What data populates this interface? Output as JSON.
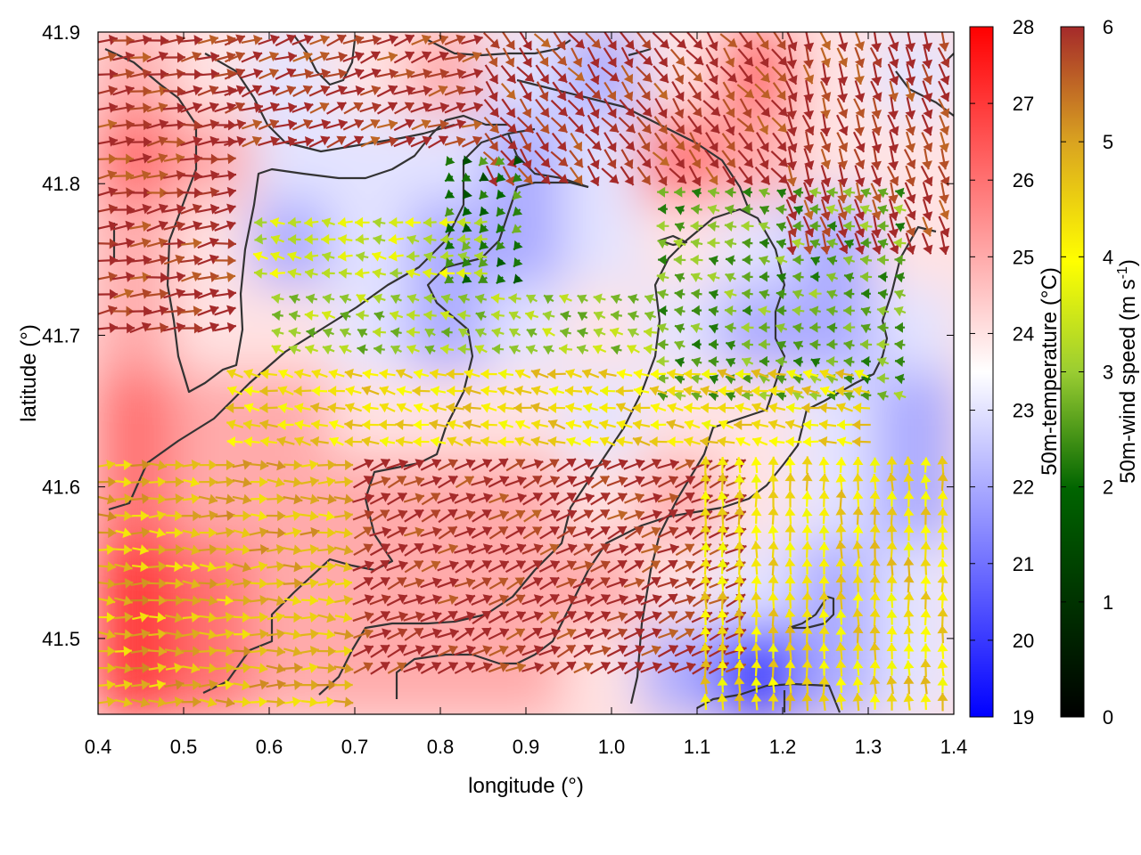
{
  "chart_data": {
    "type": "heatmap",
    "title": "",
    "xlabel": "longitude (°)",
    "ylabel": "latitude (°)",
    "xlim": [
      0.4,
      1.4
    ],
    "ylim": [
      41.45,
      41.9
    ],
    "x_ticks": [
      "0.4",
      "0.5",
      "0.6",
      "0.7",
      "0.8",
      "0.9",
      "1.0",
      "1.1",
      "1.2",
      "1.3",
      "1.4"
    ],
    "y_ticks": [
      "41.5",
      "41.6",
      "41.7",
      "41.8",
      "41.9"
    ],
    "x_tick_values": [
      0.4,
      0.5,
      0.6,
      0.7,
      0.8,
      0.9,
      1.0,
      1.1,
      1.2,
      1.3,
      1.4
    ],
    "y_tick_values": [
      41.5,
      41.6,
      41.7,
      41.8,
      41.9
    ],
    "grid": false,
    "layers": [
      {
        "name": "50m-temperature",
        "kind": "color-field"
      },
      {
        "name": "50m-wind",
        "kind": "vector-field"
      },
      {
        "name": "terrain",
        "kind": "contour-lines"
      }
    ],
    "temperature_colorbar": {
      "label": "50m-temperature (°C)",
      "range": [
        19,
        28
      ],
      "ticks": [
        "19",
        "20",
        "21",
        "22",
        "23",
        "24",
        "25",
        "26",
        "27",
        "28"
      ],
      "tick_values": [
        19,
        20,
        21,
        22,
        23,
        24,
        25,
        26,
        27,
        28
      ],
      "colors": [
        "#0000ff",
        "#ffffff",
        "#ff0000"
      ],
      "placement": "right"
    },
    "wind_colorbar": {
      "label_main": "50m-wind speed (m s",
      "label_sup": "-1",
      "label_end": ")",
      "range": [
        0,
        6
      ],
      "ticks": [
        "0",
        "1",
        "2",
        "3",
        "4",
        "5",
        "6"
      ],
      "tick_values": [
        0,
        1,
        2,
        3,
        4,
        5,
        6
      ],
      "colors": [
        "#000000",
        "#006400",
        "#9acd32",
        "#ffff00",
        "#daa520",
        "#a52a2a"
      ],
      "placement": "far-right"
    },
    "temperature_field": [
      [
        25,
        24,
        23,
        24,
        25,
        23,
        22,
        24,
        26,
        24,
        23
      ],
      [
        26,
        25,
        23,
        23,
        23,
        22,
        23,
        26,
        25,
        24,
        24
      ],
      [
        25,
        24,
        22,
        23,
        22,
        22,
        23,
        24,
        23,
        22,
        24
      ],
      [
        25,
        24,
        24,
        23,
        22,
        23,
        24,
        23,
        22,
        22,
        23
      ],
      [
        26,
        25,
        25,
        24,
        24,
        24,
        23,
        24,
        24,
        23,
        22
      ],
      [
        26,
        25,
        25,
        25,
        25,
        25,
        24,
        25,
        24,
        23,
        22
      ],
      [
        27,
        26,
        25,
        25,
        25,
        25,
        25,
        24,
        23,
        22,
        23
      ],
      [
        27,
        26,
        25,
        25,
        25,
        25,
        24,
        22,
        20,
        22,
        23
      ]
    ],
    "wind_regions": [
      {
        "x": [
          0.4,
          0.55
        ],
        "y": [
          41.7,
          41.9
        ],
        "u": 1.0,
        "v": 0.2,
        "speed": 6
      },
      {
        "x": [
          0.55,
          0.85
        ],
        "y": [
          41.82,
          41.9
        ],
        "u": 1.0,
        "v": 0.4,
        "speed": 6
      },
      {
        "x": [
          0.85,
          1.2
        ],
        "y": [
          41.8,
          41.9
        ],
        "u": 0.6,
        "v": -0.8,
        "speed": 6
      },
      {
        "x": [
          1.2,
          1.4
        ],
        "y": [
          41.75,
          41.9
        ],
        "u": 0.3,
        "v": -1.0,
        "speed": 6
      },
      {
        "x": [
          0.58,
          0.85
        ],
        "y": [
          41.73,
          41.78
        ],
        "u": -1.0,
        "v": 0.1,
        "speed": 3
      },
      {
        "x": [
          0.8,
          0.9
        ],
        "y": [
          41.73,
          41.82
        ],
        "u": -0.5,
        "v": -0.5,
        "speed": 1.5
      },
      {
        "x": [
          0.6,
          1.05
        ],
        "y": [
          41.68,
          41.73
        ],
        "u": -1.0,
        "v": 0.3,
        "speed": 2.5
      },
      {
        "x": [
          1.05,
          1.35
        ],
        "y": [
          41.66,
          41.8
        ],
        "u": -1.0,
        "v": 0.2,
        "speed": 2
      },
      {
        "x": [
          0.55,
          1.3
        ],
        "y": [
          41.62,
          41.68
        ],
        "u": -1.0,
        "v": 0.2,
        "speed": 4
      },
      {
        "x": [
          0.4,
          0.7
        ],
        "y": [
          41.45,
          41.62
        ],
        "u": 1.0,
        "v": 0.0,
        "speed": 4.5
      },
      {
        "x": [
          0.7,
          1.15
        ],
        "y": [
          41.47,
          41.62
        ],
        "u": 1.0,
        "v": 0.5,
        "speed": 6
      },
      {
        "x": [
          1.1,
          1.4
        ],
        "y": [
          41.45,
          41.62
        ],
        "u": 0.0,
        "v": 1.0,
        "speed": 4
      }
    ]
  }
}
